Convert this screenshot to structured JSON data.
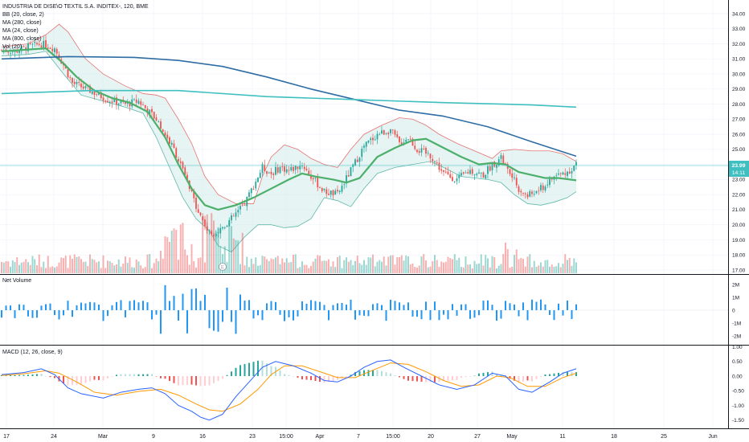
{
  "chart_title": "INDUSTRIA DE DISE\\O TEXTIL S.A. INDITEX-, 120, BME",
  "indicators": [
    "BB (20, close, 2)",
    "MA (280, close)",
    "MA (24, close)",
    "MA (800, close)",
    "Vol (20)"
  ],
  "price_badge": {
    "value": "23.99",
    "countdown": "14:11"
  },
  "colors": {
    "up": "#26a69a",
    "down": "#ef5350",
    "bb_line": "#e57373",
    "bb_fill": "#c8e6e6",
    "ma24": "#4caf6a",
    "ma280": "#2e6da4",
    "ma800": "#3fbfc0",
    "net_volume": "#2196f3",
    "macd": "#2962ff",
    "signal": "#ff9800"
  },
  "chart_data": [
    {
      "type": "candlestick",
      "ylim": [
        17.0,
        34.5
      ],
      "y_ticks": [
        "34.00",
        "33.00",
        "32.00",
        "31.00",
        "30.00",
        "29.00",
        "28.00",
        "27.00",
        "26.00",
        "25.00",
        "24.00",
        "23.00",
        "22.00",
        "21.00",
        "20.00",
        "19.00",
        "18.00",
        "17.00"
      ],
      "x_ticks": [
        "17",
        "24",
        "Mar",
        "9",
        "16",
        "23",
        "15:00",
        "Apr",
        "7",
        "15:00",
        "20",
        "27",
        "May",
        "11",
        "18",
        "25",
        "Jun"
      ],
      "last_price": 23.99,
      "close_path": [
        [
          0,
          31.6
        ],
        [
          6,
          31.5
        ],
        [
          12,
          31.8
        ],
        [
          18,
          32.0
        ],
        [
          24,
          31.7
        ],
        [
          28,
          30.6
        ],
        [
          32,
          29.4
        ],
        [
          40,
          28.9
        ],
        [
          48,
          28.3
        ],
        [
          56,
          28.0
        ],
        [
          62,
          28.2
        ],
        [
          66,
          27.6
        ],
        [
          70,
          27.0
        ],
        [
          74,
          26.0
        ],
        [
          78,
          25.0
        ],
        [
          82,
          23.6
        ],
        [
          86,
          22.0
        ],
        [
          90,
          20.6
        ],
        [
          94,
          19.4
        ],
        [
          98,
          19.6
        ],
        [
          104,
          20.4
        ],
        [
          110,
          21.4
        ],
        [
          114,
          22.6
        ],
        [
          118,
          23.8
        ],
        [
          122,
          23.4
        ],
        [
          126,
          23.8
        ],
        [
          130,
          23.6
        ],
        [
          136,
          24.0
        ],
        [
          140,
          23.2
        ],
        [
          146,
          22.2
        ],
        [
          152,
          22.0
        ],
        [
          158,
          23.6
        ],
        [
          164,
          25.2
        ],
        [
          170,
          26.0
        ],
        [
          176,
          26.3
        ],
        [
          180,
          25.4
        ],
        [
          184,
          25.8
        ],
        [
          188,
          25.0
        ],
        [
          194,
          24.6
        ],
        [
          200,
          23.4
        ],
        [
          206,
          23.0
        ],
        [
          212,
          23.6
        ],
        [
          218,
          23.3
        ],
        [
          222,
          24.0
        ],
        [
          226,
          24.4
        ],
        [
          230,
          23.4
        ],
        [
          234,
          22.4
        ],
        [
          238,
          21.9
        ],
        [
          242,
          22.2
        ],
        [
          246,
          22.6
        ],
        [
          250,
          23.2
        ],
        [
          256,
          23.5
        ],
        [
          260,
          23.99
        ]
      ],
      "moving_averages": [
        {
          "name": "MA (24, close)",
          "values": [
            [
              0,
              31.5
            ],
            [
              20,
              31.7
            ],
            [
              28,
              30.7
            ],
            [
              34,
              29.8
            ],
            [
              42,
              28.9
            ],
            [
              50,
              28.4
            ],
            [
              58,
              28.1
            ],
            [
              66,
              27.5
            ],
            [
              74,
              25.8
            ],
            [
              80,
              24.0
            ],
            [
              86,
              22.4
            ],
            [
              92,
              21.3
            ],
            [
              98,
              21.0
            ],
            [
              106,
              21.3
            ],
            [
              114,
              21.8
            ],
            [
              122,
              22.4
            ],
            [
              130,
              23.0
            ],
            [
              136,
              23.4
            ],
            [
              142,
              23.2
            ],
            [
              150,
              23.0
            ],
            [
              156,
              22.8
            ],
            [
              162,
              23.1
            ],
            [
              170,
              24.5
            ],
            [
              178,
              25.1
            ],
            [
              186,
              25.6
            ],
            [
              192,
              25.7
            ],
            [
              200,
              25.1
            ],
            [
              208,
              24.5
            ],
            [
              216,
              24.0
            ],
            [
              222,
              24.1
            ],
            [
              228,
              24.0
            ],
            [
              234,
              23.5
            ],
            [
              240,
              23.3
            ],
            [
              246,
              23.1
            ],
            [
              252,
              23.1
            ],
            [
              260,
              22.95
            ]
          ]
        },
        {
          "name": "MA (280, close)",
          "values": [
            [
              0,
              31.0
            ],
            [
              30,
              31.15
            ],
            [
              60,
              31.1
            ],
            [
              80,
              30.9
            ],
            [
              100,
              30.5
            ],
            [
              120,
              29.8
            ],
            [
              140,
              29.0
            ],
            [
              160,
              28.3
            ],
            [
              180,
              27.6
            ],
            [
              200,
              27.2
            ],
            [
              220,
              26.5
            ],
            [
              240,
              25.5
            ],
            [
              260,
              24.55
            ]
          ]
        },
        {
          "name": "MA (800, close)",
          "values": [
            [
              0,
              28.7
            ],
            [
              40,
              28.9
            ],
            [
              80,
              28.9
            ],
            [
              120,
              28.5
            ],
            [
              160,
              28.3
            ],
            [
              200,
              28.1
            ],
            [
              240,
              27.95
            ],
            [
              260,
              27.8
            ]
          ]
        }
      ],
      "bollinger_bands": {
        "upper": [
          [
            0,
            31.8
          ],
          [
            12,
            32.0
          ],
          [
            20,
            32.6
          ],
          [
            26,
            33.3
          ],
          [
            30,
            32.8
          ],
          [
            38,
            31.0
          ],
          [
            46,
            30.0
          ],
          [
            56,
            29.2
          ],
          [
            64,
            28.7
          ],
          [
            70,
            28.6
          ],
          [
            74,
            28.4
          ],
          [
            80,
            27.0
          ],
          [
            86,
            25.4
          ],
          [
            92,
            23.2
          ],
          [
            98,
            22.0
          ],
          [
            106,
            21.4
          ],
          [
            114,
            21.4
          ],
          [
            118,
            23.2
          ],
          [
            122,
            24.5
          ],
          [
            128,
            25.3
          ],
          [
            134,
            25.0
          ],
          [
            140,
            24.4
          ],
          [
            146,
            24.0
          ],
          [
            152,
            23.8
          ],
          [
            158,
            25.0
          ],
          [
            164,
            26.0
          ],
          [
            172,
            26.6
          ],
          [
            180,
            27.1
          ],
          [
            186,
            27.0
          ],
          [
            192,
            26.6
          ],
          [
            198,
            26.0
          ],
          [
            206,
            25.4
          ],
          [
            214,
            24.9
          ],
          [
            222,
            24.4
          ],
          [
            226,
            24.9
          ],
          [
            232,
            25.0
          ],
          [
            240,
            24.9
          ],
          [
            248,
            24.9
          ],
          [
            254,
            24.7
          ],
          [
            260,
            24.2
          ]
        ],
        "lower": [
          [
            0,
            31.2
          ],
          [
            12,
            31.3
          ],
          [
            20,
            31.5
          ],
          [
            28,
            30.0
          ],
          [
            36,
            28.6
          ],
          [
            46,
            28.2
          ],
          [
            56,
            27.8
          ],
          [
            64,
            27.4
          ],
          [
            70,
            25.8
          ],
          [
            76,
            23.8
          ],
          [
            82,
            21.8
          ],
          [
            88,
            20.4
          ],
          [
            94,
            19.6
          ],
          [
            98,
            18.6
          ],
          [
            104,
            18.2
          ],
          [
            110,
            19.2
          ],
          [
            116,
            20.0
          ],
          [
            122,
            20.0
          ],
          [
            128,
            19.8
          ],
          [
            134,
            19.9
          ],
          [
            140,
            20.4
          ],
          [
            146,
            21.8
          ],
          [
            152,
            21.6
          ],
          [
            158,
            21.2
          ],
          [
            164,
            22.4
          ],
          [
            170,
            23.4
          ],
          [
            178,
            23.8
          ],
          [
            186,
            24.0
          ],
          [
            194,
            24.2
          ],
          [
            200,
            23.8
          ],
          [
            208,
            23.2
          ],
          [
            214,
            23.1
          ],
          [
            220,
            23.0
          ],
          [
            226,
            22.8
          ],
          [
            232,
            22.0
          ],
          [
            238,
            21.4
          ],
          [
            244,
            21.3
          ],
          [
            250,
            21.5
          ],
          [
            256,
            21.8
          ],
          [
            260,
            22.2
          ]
        ]
      }
    },
    {
      "type": "line",
      "series_name": "Net Volume",
      "ylim": [
        -2.5,
        2.5
      ],
      "y_ticks": [
        "2M",
        "1M",
        "0",
        "-1M",
        "-2M"
      ],
      "x_ticks": [
        "17",
        "24",
        "Mar",
        "9",
        "16",
        "23",
        "15:00",
        "Apr",
        "7",
        "15:00",
        "20",
        "27",
        "May",
        "11",
        "18",
        "25",
        "Jun"
      ]
    },
    {
      "type": "line",
      "series_name": "MACD (12, 26, close, 9)",
      "ylim": [
        -1.75,
        1.1
      ],
      "y_ticks": [
        "1.00",
        "0.50",
        "0.00",
        "-0.50",
        "-1.00",
        "-1.50"
      ],
      "x_ticks": [
        "17",
        "24",
        "Mar",
        "9",
        "16",
        "23",
        "15:00",
        "Apr",
        "7",
        "15:00",
        "20",
        "27",
        "May",
        "11",
        "18",
        "25",
        "Jun"
      ],
      "macd": [
        [
          0,
          0.05
        ],
        [
          10,
          0.12
        ],
        [
          18,
          0.25
        ],
        [
          24,
          0.05
        ],
        [
          30,
          -0.4
        ],
        [
          36,
          -0.6
        ],
        [
          46,
          -0.75
        ],
        [
          54,
          -0.55
        ],
        [
          62,
          -0.45
        ],
        [
          68,
          -0.4
        ],
        [
          74,
          -0.6
        ],
        [
          80,
          -1.0
        ],
        [
          86,
          -1.2
        ],
        [
          90,
          -1.4
        ],
        [
          94,
          -1.5
        ],
        [
          100,
          -1.3
        ],
        [
          106,
          -0.7
        ],
        [
          112,
          -0.2
        ],
        [
          118,
          0.3
        ],
        [
          124,
          0.5
        ],
        [
          132,
          0.35
        ],
        [
          140,
          0.1
        ],
        [
          146,
          -0.15
        ],
        [
          152,
          -0.2
        ],
        [
          158,
          0.0
        ],
        [
          164,
          0.3
        ],
        [
          170,
          0.5
        ],
        [
          176,
          0.55
        ],
        [
          182,
          0.3
        ],
        [
          190,
          0.0
        ],
        [
          198,
          -0.3
        ],
        [
          206,
          -0.45
        ],
        [
          214,
          -0.3
        ],
        [
          222,
          0.1
        ],
        [
          228,
          0.0
        ],
        [
          234,
          -0.45
        ],
        [
          240,
          -0.55
        ],
        [
          248,
          -0.2
        ],
        [
          254,
          0.1
        ],
        [
          260,
          0.25
        ]
      ],
      "signal": [
        [
          0,
          0.02
        ],
        [
          10,
          0.08
        ],
        [
          20,
          0.18
        ],
        [
          26,
          0.1
        ],
        [
          34,
          -0.2
        ],
        [
          42,
          -0.55
        ],
        [
          52,
          -0.65
        ],
        [
          62,
          -0.52
        ],
        [
          72,
          -0.45
        ],
        [
          80,
          -0.65
        ],
        [
          88,
          -0.95
        ],
        [
          94,
          -1.15
        ],
        [
          100,
          -1.2
        ],
        [
          108,
          -0.95
        ],
        [
          116,
          -0.45
        ],
        [
          122,
          0.05
        ],
        [
          128,
          0.35
        ],
        [
          136,
          0.35
        ],
        [
          144,
          0.15
        ],
        [
          152,
          -0.05
        ],
        [
          160,
          -0.05
        ],
        [
          168,
          0.2
        ],
        [
          176,
          0.45
        ],
        [
          184,
          0.4
        ],
        [
          192,
          0.15
        ],
        [
          200,
          -0.15
        ],
        [
          208,
          -0.35
        ],
        [
          216,
          -0.3
        ],
        [
          224,
          0.0
        ],
        [
          230,
          -0.05
        ],
        [
          238,
          -0.35
        ],
        [
          246,
          -0.35
        ],
        [
          254,
          -0.05
        ],
        [
          260,
          0.1
        ]
      ]
    }
  ]
}
